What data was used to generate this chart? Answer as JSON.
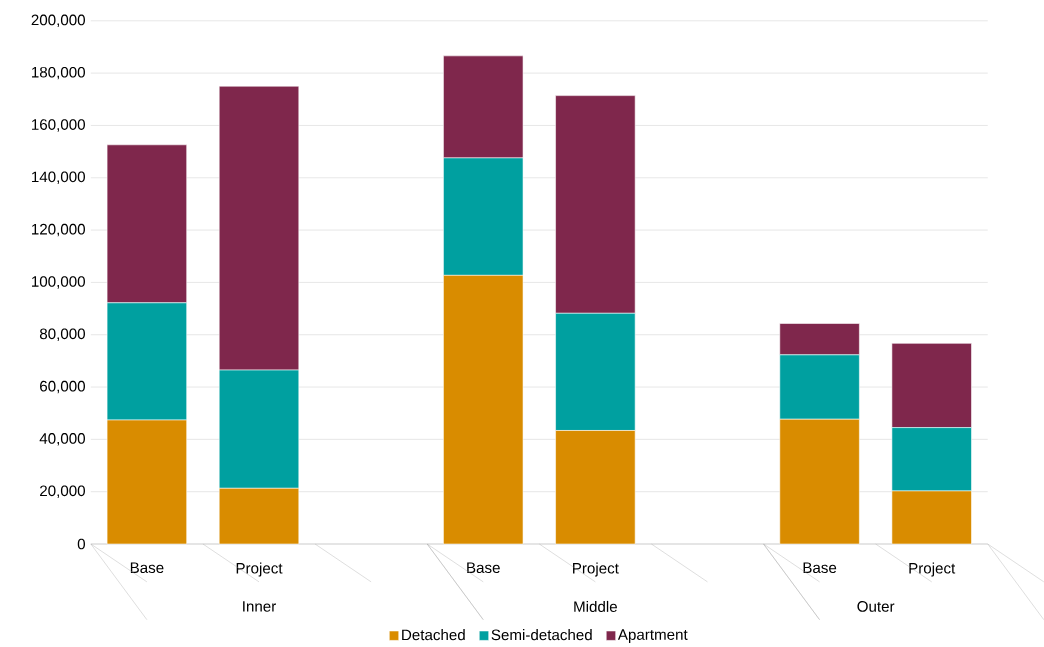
{
  "chart_data": {
    "type": "bar",
    "stacked": true,
    "categories": [
      "Base",
      "Project",
      null,
      "Base",
      "Project",
      null,
      "Base",
      "Project"
    ],
    "series": [
      {
        "name": "Detached",
        "color": "#d98c00",
        "values": [
          47400,
          21300,
          null,
          102700,
          43400,
          null,
          47700,
          20300
        ]
      },
      {
        "name": "Semi-detached",
        "color": "#00a0a0",
        "values": [
          44800,
          45200,
          null,
          44900,
          44800,
          null,
          24600,
          24200
        ]
      },
      {
        "name": "Apartment",
        "color": "#7f274c",
        "values": [
          60400,
          108500,
          null,
          39000,
          83200,
          null,
          12000,
          32200
        ]
      }
    ],
    "annotations": [
      "Inner",
      "Middle",
      "Outer"
    ],
    "ylim": [
      0,
      200000
    ],
    "yticks": [
      {
        "value": 0,
        "label": "0"
      },
      {
        "value": 20000,
        "label": "20,000"
      },
      {
        "value": 40000,
        "label": "40,000"
      },
      {
        "value": 60000,
        "label": "60,000"
      },
      {
        "value": 80000,
        "label": "80,000"
      },
      {
        "value": 100000,
        "label": "100,000"
      },
      {
        "value": 120000,
        "label": "120,000"
      },
      {
        "value": 140000,
        "label": "140,000"
      },
      {
        "value": 160000,
        "label": "160,000"
      },
      {
        "value": 180000,
        "label": "180,000"
      },
      {
        "value": 200000,
        "label": "200,000"
      }
    ],
    "grid": "y",
    "legend": "bottom"
  }
}
